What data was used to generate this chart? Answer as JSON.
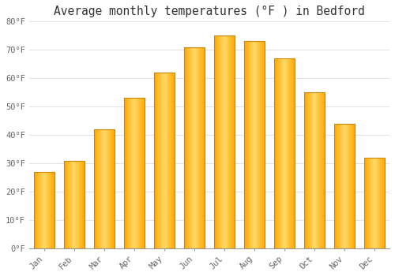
{
  "title": "Average monthly temperatures (°F ) in Bedford",
  "months": [
    "Jan",
    "Feb",
    "Mar",
    "Apr",
    "May",
    "Jun",
    "Jul",
    "Aug",
    "Sep",
    "Oct",
    "Nov",
    "Dec"
  ],
  "values": [
    27,
    31,
    42,
    53,
    62,
    71,
    75,
    73,
    67,
    55,
    44,
    32
  ],
  "bar_color_light": "#FFD966",
  "bar_color_dark": "#FFA500",
  "bar_edge_color": "#CC8800",
  "background_color": "#FFFFFF",
  "grid_color": "#DDDDDD",
  "ylim": [
    0,
    80
  ],
  "yticks": [
    0,
    10,
    20,
    30,
    40,
    50,
    60,
    70,
    80
  ],
  "ytick_labels": [
    "0°F",
    "10°F",
    "20°F",
    "30°F",
    "40°F",
    "50°F",
    "60°F",
    "70°F",
    "80°F"
  ],
  "title_fontsize": 10.5,
  "tick_fontsize": 7.5,
  "font_family": "monospace",
  "tick_color": "#666666",
  "title_color": "#333333"
}
